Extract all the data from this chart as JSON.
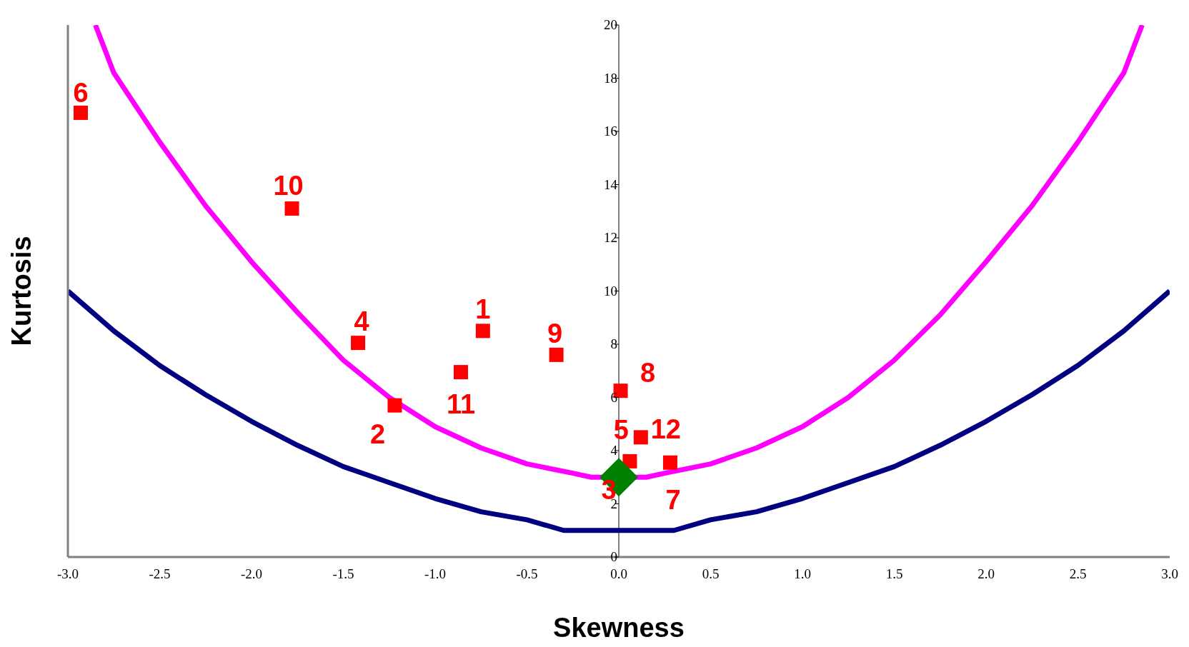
{
  "chart_data": {
    "type": "line",
    "xlabel": "Skewness",
    "ylabel": "Kurtosis",
    "xlim": [
      -3,
      3
    ],
    "xticks": [
      {
        "value": -3,
        "label": "-3.0"
      },
      {
        "value": -2.5,
        "label": "-2.5"
      },
      {
        "value": -2,
        "label": "-2.0"
      },
      {
        "value": -1.5,
        "label": "-1.5"
      },
      {
        "value": -1,
        "label": "-1.0"
      },
      {
        "value": -0.5,
        "label": "-0.5"
      },
      {
        "value": 0,
        "label": "0.0"
      },
      {
        "value": 0.5,
        "label": "0.5"
      },
      {
        "value": 1,
        "label": "1.0"
      },
      {
        "value": 1.5,
        "label": "1.5"
      },
      {
        "value": 2,
        "label": "2.0"
      },
      {
        "value": 2.5,
        "label": "2.5"
      },
      {
        "value": 3,
        "label": "3.0"
      }
    ],
    "ylim": [
      0,
      20
    ],
    "yticks": [
      0,
      2,
      4,
      6,
      8,
      10,
      12,
      14,
      16,
      18,
      20
    ],
    "line_style": "solid",
    "series": [
      {
        "color": "#ff00ff",
        "marker": "none",
        "x": [
          -2.85,
          -2.75,
          -2.5,
          -2.25,
          -2,
          -1.75,
          -1.5,
          -1.25,
          -1,
          -0.75,
          -0.5,
          -0.25,
          -0.15,
          0.15,
          0.25,
          0.5,
          0.75,
          1,
          1.25,
          1.5,
          1.75,
          2,
          2.25,
          2.5,
          2.75,
          2.85
        ],
        "values": [
          20,
          18.2,
          15.6,
          13.2,
          11.1,
          9.2,
          7.4,
          6,
          4.9,
          4.1,
          3.5,
          3.15,
          3,
          3,
          3.15,
          3.5,
          4.1,
          4.9,
          6,
          7.4,
          9.1,
          11.1,
          13.2,
          15.6,
          18.2,
          20
        ]
      },
      {
        "color": "#000080",
        "marker": "none",
        "x": [
          -3,
          -2.75,
          -2.5,
          -2.25,
          -2,
          -1.75,
          -1.5,
          -1.25,
          -1,
          -0.75,
          -0.5,
          -0.3,
          0.3,
          0.5,
          0.75,
          1,
          1.25,
          1.5,
          1.75,
          2,
          2.25,
          2.5,
          2.75,
          3
        ],
        "values": [
          10,
          8.5,
          7.2,
          6.1,
          5.1,
          4.2,
          3.4,
          2.8,
          2.2,
          1.7,
          1.4,
          1,
          1,
          1.4,
          1.7,
          2.2,
          2.8,
          3.4,
          4.2,
          5.1,
          6.1,
          7.2,
          8.5,
          10
        ]
      },
      {
        "type": "scatter",
        "color": "#ff0000",
        "marker": "square",
        "x": [
          -0.74,
          -1.22,
          -1.42,
          0.06,
          -2.93,
          0.28,
          0.01,
          -0.34,
          -1.78,
          -0.86,
          0.12
        ],
        "values": [
          8.5,
          5.7,
          8.05,
          3.6,
          16.7,
          3.55,
          6.25,
          7.6,
          13.1,
          6.95,
          4.5
        ]
      },
      {
        "type": "scatter",
        "color": "#008000",
        "marker": "diamond",
        "x": [
          0
        ],
        "values": [
          3
        ]
      }
    ],
    "annotations": [
      {
        "text": "1",
        "x": -0.74,
        "y": 8.5
      },
      {
        "text": "2",
        "x": -1.22,
        "y": 5.7
      },
      {
        "text": "3",
        "x": 0,
        "y": 3
      },
      {
        "text": "4",
        "x": -1.42,
        "y": 8.05
      },
      {
        "text": "5",
        "x": 0.06,
        "y": 3.6
      },
      {
        "text": "6",
        "x": -2.93,
        "y": 16.7
      },
      {
        "text": "7",
        "x": 0.28,
        "y": 3.55
      },
      {
        "text": "8",
        "x": 0.01,
        "y": 6.25
      },
      {
        "text": "9",
        "x": -0.34,
        "y": 7.6
      },
      {
        "text": "10",
        "x": -1.78,
        "y": 13.1
      },
      {
        "text": "11",
        "x": -0.86,
        "y": 6.95
      },
      {
        "text": "12",
        "x": 0.12,
        "y": 4.5
      }
    ]
  }
}
